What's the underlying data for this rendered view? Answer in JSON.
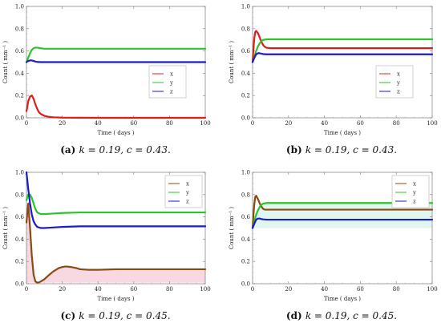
{
  "chart_data": [
    {
      "type": "line",
      "panel": "a",
      "caption": "(a) k = 0.19, c = 0.43.",
      "caption_tag": "(a)",
      "caption_math": "k = 0.19, c = 0.43.",
      "xlabel": "Time ( days )",
      "ylabel": "Count ( mm⁻¹ )",
      "xlim": [
        0,
        100
      ],
      "ylim": [
        0,
        1.0
      ],
      "xticks": [
        "0",
        "20",
        "40",
        "60",
        "80",
        "100"
      ],
      "yticks": [
        "0.0",
        "0.2",
        "0.4",
        "0.6",
        "0.8",
        "1.0"
      ],
      "legend_position": "right-middle",
      "legend": [
        "x",
        "y",
        "z"
      ],
      "series": [
        {
          "name": "x",
          "color": "#dd1c1c",
          "shade": false,
          "x": [
            0,
            0.5,
            1,
            2,
            3,
            4,
            5,
            6,
            7,
            8,
            10,
            12,
            15,
            20,
            30,
            40,
            60,
            80,
            100
          ],
          "y": [
            0.06,
            0.1,
            0.15,
            0.19,
            0.2,
            0.17,
            0.12,
            0.08,
            0.05,
            0.035,
            0.018,
            0.01,
            0.005,
            0.002,
            0.001,
            0.0,
            0.0,
            0.0,
            0.0
          ]
        },
        {
          "name": "y",
          "color": "#2ec22e",
          "shade": false,
          "x": [
            0,
            1,
            2,
            3,
            4,
            5,
            6,
            8,
            10,
            15,
            20,
            40,
            60,
            80,
            100
          ],
          "y": [
            0.5,
            0.54,
            0.58,
            0.61,
            0.625,
            0.63,
            0.63,
            0.625,
            0.62,
            0.62,
            0.62,
            0.62,
            0.62,
            0.62,
            0.62
          ]
        },
        {
          "name": "z",
          "color": "#1a1ad0",
          "shade": false,
          "x": [
            0,
            1,
            2,
            3,
            4,
            5,
            6,
            8,
            10,
            15,
            20,
            40,
            60,
            80,
            100
          ],
          "y": [
            0.5,
            0.51,
            0.515,
            0.515,
            0.51,
            0.505,
            0.502,
            0.5,
            0.5,
            0.5,
            0.5,
            0.5,
            0.5,
            0.5,
            0.5
          ]
        }
      ]
    },
    {
      "type": "line",
      "panel": "b",
      "caption": "(b) k = 0.19, c = 0.43.",
      "caption_tag": "(b)",
      "caption_math": "k = 0.19, c = 0.43.",
      "xlabel": "Time ( days )",
      "ylabel": "Count ( mm⁻¹ )",
      "xlim": [
        0,
        100
      ],
      "ylim": [
        0,
        1.0
      ],
      "xticks": [
        "0",
        "20",
        "40",
        "60",
        "80",
        "100"
      ],
      "yticks": [
        "0.0",
        "0.2",
        "0.4",
        "0.6",
        "0.8",
        "1.0"
      ],
      "legend_position": "right-middle",
      "legend": [
        "x",
        "y",
        "z"
      ],
      "series": [
        {
          "name": "x",
          "color": "#dd1c1c",
          "shade": false,
          "x": [
            0,
            0.5,
            1,
            1.5,
            2,
            3,
            4,
            5,
            6,
            7,
            8,
            10,
            15,
            20,
            40,
            60,
            80,
            100
          ],
          "y": [
            0.5,
            0.62,
            0.72,
            0.77,
            0.78,
            0.76,
            0.72,
            0.68,
            0.65,
            0.635,
            0.628,
            0.625,
            0.625,
            0.625,
            0.625,
            0.625,
            0.625,
            0.625
          ]
        },
        {
          "name": "y",
          "color": "#2ec22e",
          "shade": false,
          "x": [
            0,
            1,
            2,
            3,
            4,
            5,
            6,
            8,
            10,
            15,
            20,
            40,
            60,
            80,
            100
          ],
          "y": [
            0.5,
            0.55,
            0.6,
            0.64,
            0.67,
            0.69,
            0.7,
            0.705,
            0.705,
            0.705,
            0.705,
            0.705,
            0.705,
            0.705,
            0.705
          ]
        },
        {
          "name": "z",
          "color": "#1a1ad0",
          "shade": false,
          "x": [
            0,
            1,
            2,
            3,
            4,
            5,
            6,
            8,
            10,
            15,
            20,
            40,
            60,
            80,
            100
          ],
          "y": [
            0.5,
            0.54,
            0.57,
            0.58,
            0.58,
            0.575,
            0.572,
            0.57,
            0.57,
            0.57,
            0.57,
            0.57,
            0.57,
            0.57,
            0.57
          ]
        }
      ]
    },
    {
      "type": "line",
      "panel": "c",
      "caption": "(c) k = 0.19, c = 0.45.",
      "caption_tag": "(c)",
      "caption_math": "k = 0.19, c = 0.45.",
      "xlabel": "Time ( days )",
      "ylabel": "Count ( mm⁻¹ )",
      "xlim": [
        0,
        100
      ],
      "ylim": [
        0,
        1.0
      ],
      "xticks": [
        "0",
        "20",
        "40",
        "60",
        "80",
        "100"
      ],
      "yticks": [
        "0.0",
        "0.2",
        "0.4",
        "0.6",
        "0.8",
        "1.0"
      ],
      "legend_position": "top-right",
      "legend": [
        "x",
        "y",
        "z"
      ],
      "series": [
        {
          "name": "x",
          "color": "#8a4a14",
          "shade": true,
          "shade_color": "#f3b8c8",
          "x": [
            0,
            1,
            2,
            3,
            4,
            5,
            6,
            7,
            8,
            10,
            12,
            15,
            18,
            20,
            22,
            25,
            28,
            30,
            35,
            40,
            50,
            60,
            80,
            100
          ],
          "y": [
            0.55,
            0.72,
            0.5,
            0.25,
            0.08,
            0.02,
            0.01,
            0.012,
            0.02,
            0.04,
            0.07,
            0.11,
            0.14,
            0.15,
            0.155,
            0.15,
            0.14,
            0.13,
            0.125,
            0.125,
            0.13,
            0.13,
            0.13,
            0.13
          ]
        },
        {
          "name": "y",
          "color": "#2ec22e",
          "shade": false,
          "x": [
            0,
            1,
            2,
            3,
            4,
            5,
            6,
            8,
            10,
            15,
            20,
            30,
            40,
            60,
            80,
            100
          ],
          "y": [
            0.75,
            0.8,
            0.8,
            0.77,
            0.72,
            0.67,
            0.64,
            0.625,
            0.625,
            0.63,
            0.635,
            0.64,
            0.64,
            0.64,
            0.64,
            0.64
          ]
        },
        {
          "name": "z",
          "color": "#1a1ad0",
          "shade": false,
          "x": [
            0,
            1,
            2,
            3,
            4,
            5,
            6,
            8,
            10,
            15,
            20,
            30,
            40,
            60,
            80,
            100
          ],
          "y": [
            1.0,
            0.85,
            0.72,
            0.62,
            0.56,
            0.53,
            0.51,
            0.5,
            0.5,
            0.505,
            0.51,
            0.515,
            0.515,
            0.515,
            0.515,
            0.515
          ]
        }
      ]
    },
    {
      "type": "line",
      "panel": "d",
      "caption": "(d) k = 0.19, c = 0.45.",
      "caption_tag": "(d)",
      "caption_math": "k = 0.19, c = 0.45.",
      "xlabel": "Time ( days )",
      "ylabel": "Count ( mm⁻¹ )",
      "xlim": [
        0,
        100
      ],
      "ylim": [
        0,
        1.0
      ],
      "xticks": [
        "0",
        "20",
        "40",
        "60",
        "80",
        "100"
      ],
      "yticks": [
        "0.0",
        "0.2",
        "0.4",
        "0.6",
        "0.8",
        "1.0"
      ],
      "legend_position": "top-right",
      "legend": [
        "x",
        "y",
        "z"
      ],
      "series": [
        {
          "name": "x",
          "color": "#8a4a14",
          "shade": false,
          "x": [
            0,
            0.5,
            1,
            1.5,
            2,
            3,
            4,
            5,
            6,
            7,
            8,
            10,
            15,
            20,
            40,
            60,
            80,
            100
          ],
          "y": [
            0.5,
            0.62,
            0.72,
            0.78,
            0.79,
            0.76,
            0.72,
            0.69,
            0.67,
            0.665,
            0.665,
            0.665,
            0.665,
            0.665,
            0.665,
            0.665,
            0.665,
            0.665
          ]
        },
        {
          "name": "y",
          "color": "#2ec22e",
          "shade": true,
          "shade_color": "#c5f1e2",
          "x": [
            0,
            1,
            2,
            3,
            4,
            5,
            6,
            8,
            10,
            15,
            20,
            40,
            60,
            80,
            100
          ],
          "y": [
            0.5,
            0.56,
            0.62,
            0.66,
            0.69,
            0.71,
            0.72,
            0.725,
            0.725,
            0.725,
            0.725,
            0.725,
            0.725,
            0.725,
            0.725
          ]
        },
        {
          "name": "z",
          "color": "#1a1ad0",
          "shade": false,
          "x": [
            0,
            1,
            2,
            3,
            4,
            5,
            6,
            8,
            10,
            15,
            20,
            40,
            60,
            80,
            100
          ],
          "y": [
            0.5,
            0.54,
            0.575,
            0.585,
            0.585,
            0.58,
            0.578,
            0.575,
            0.575,
            0.575,
            0.575,
            0.575,
            0.575,
            0.575,
            0.575
          ]
        }
      ]
    }
  ]
}
